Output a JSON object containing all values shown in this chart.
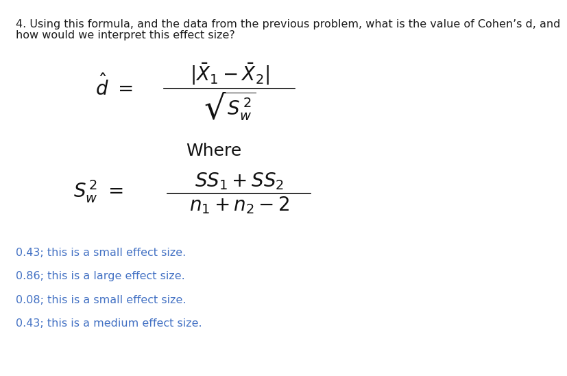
{
  "background_color": "#ffffff",
  "question_line1": "4. Using this formula, and the data from the previous problem, what is the value of Cohen’s d, and",
  "question_line2": "how would we interpret this effect size?",
  "question_fontsize": 11.5,
  "question_color": "#1a1a1a",
  "formula_fontsize": 20,
  "where_fontsize": 18,
  "answers": [
    "0.43; this is a small effect size.",
    "0.86; this is a large effect size.",
    "0.08; this is a small effect size.",
    "0.43; this is a medium effect size."
  ],
  "answer_color": "#4472C4",
  "answer_fontsize": 11.5
}
